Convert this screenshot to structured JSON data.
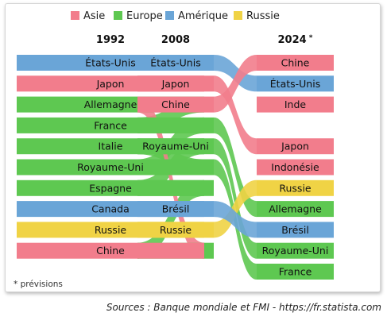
{
  "chart_data": {
    "type": "bump",
    "legend": [
      {
        "name": "Asie",
        "color": "#f27d8c"
      },
      {
        "name": "Europe",
        "color": "#5ec851"
      },
      {
        "name": "Amérique",
        "color": "#6aa5d7"
      },
      {
        "name": "Russie",
        "color": "#f0d345"
      }
    ],
    "years": [
      "1992",
      "2008",
      "2024"
    ],
    "footnote_marker": "*",
    "footnote": "* prévisions",
    "countries": [
      {
        "name": "États-Unis",
        "group": "Amérique",
        "ranks": [
          1,
          1,
          2
        ]
      },
      {
        "name": "Japon",
        "group": "Asie",
        "ranks": [
          2,
          2,
          5
        ]
      },
      {
        "name": "Allemagne",
        "group": "Europe",
        "ranks": [
          3,
          4,
          8
        ]
      },
      {
        "name": "France",
        "group": "Europe",
        "ranks": [
          4,
          6,
          11
        ]
      },
      {
        "name": "Italie",
        "group": "Europe",
        "ranks": [
          5,
          7,
          null
        ]
      },
      {
        "name": "Royaume-Uni",
        "group": "Europe",
        "ranks": [
          6,
          5,
          10
        ]
      },
      {
        "name": "Espagne",
        "group": "Europe",
        "ranks": [
          7,
          10,
          null
        ]
      },
      {
        "name": "Canada",
        "group": "Amérique",
        "ranks": [
          8,
          null,
          null
        ]
      },
      {
        "name": "Russie",
        "group": "Russie",
        "ranks": [
          9,
          9,
          7
        ]
      },
      {
        "name": "Chine",
        "group": "Asie",
        "ranks": [
          10,
          3,
          1
        ]
      },
      {
        "name": "Brésil",
        "group": "Amérique",
        "ranks": [
          null,
          8,
          9
        ]
      },
      {
        "name": "Inde",
        "group": "Asie",
        "ranks": [
          null,
          null,
          3
        ]
      },
      {
        "name": "Indonésie",
        "group": "Asie",
        "ranks": [
          null,
          null,
          6
        ]
      }
    ]
  },
  "source": "Sources : Banque mondiale et FMI - https://fr.statista.com"
}
